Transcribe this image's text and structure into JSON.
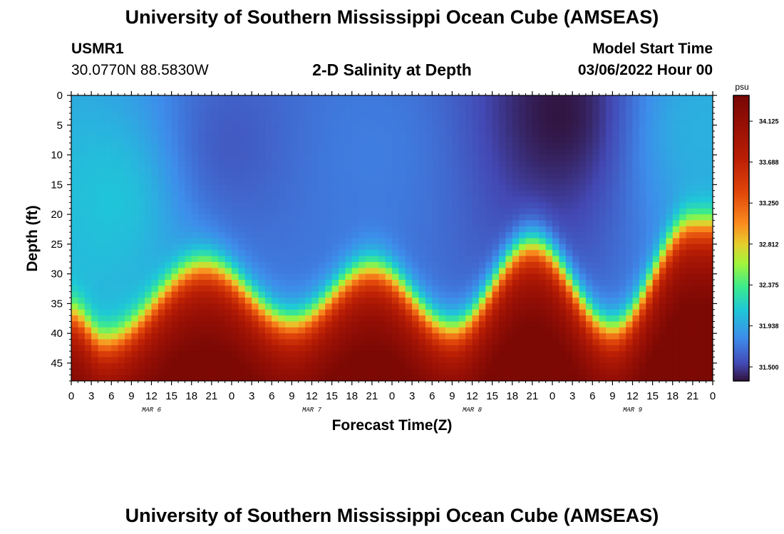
{
  "header": {
    "title": "University of Southern Mississippi Ocean Cube (AMSEAS)",
    "station_id": "USMR1",
    "coordinates": "30.0770N  88.5830W",
    "subtitle": "2-D Salinity at Depth",
    "model_start_label": "Model Start Time",
    "model_start_value": "03/06/2022 Hour 00"
  },
  "footer": {
    "title": "University of Southern Mississippi Ocean Cube (AMSEAS)"
  },
  "chart_data": {
    "type": "heatmap",
    "title": "2-D Salinity at Depth",
    "xlabel": "Forecast Time(Z)",
    "ylabel": "Depth (ft)",
    "x_tick_labels": [
      "0",
      "3",
      "6",
      "9",
      "12",
      "15",
      "18",
      "21",
      "0",
      "3",
      "6",
      "9",
      "12",
      "15",
      "18",
      "21",
      "0",
      "3",
      "6",
      "9",
      "12",
      "15",
      "18",
      "21",
      "0",
      "3",
      "6",
      "9",
      "12",
      "15",
      "18",
      "21",
      "0"
    ],
    "x_range_hours": [
      0,
      96
    ],
    "date_labels": [
      {
        "label": "MAR 6",
        "hour": 12
      },
      {
        "label": "MAR 7",
        "hour": 36
      },
      {
        "label": "MAR 8",
        "hour": 60
      },
      {
        "label": "MAR 9",
        "hour": 84
      }
    ],
    "y_ticks": [
      0,
      5,
      10,
      15,
      20,
      25,
      30,
      35,
      40,
      45
    ],
    "ylim": [
      0,
      48
    ],
    "colorbar": {
      "unit": "psu",
      "tick_labels": [
        "34.125",
        "33.688",
        "33.250",
        "32.812",
        "32.375",
        "31.938",
        "31.500"
      ],
      "tick_values": [
        34.125,
        33.688,
        33.25,
        32.812,
        32.375,
        31.938,
        31.5
      ],
      "min": 31.35,
      "max": 34.4
    },
    "interface_depth_ft": [
      {
        "hour": 0,
        "depth": 37
      },
      {
        "hour": 5,
        "depth": 41.5
      },
      {
        "hour": 20,
        "depth": 29
      },
      {
        "hour": 33,
        "depth": 38.5
      },
      {
        "hour": 45,
        "depth": 29.5
      },
      {
        "hour": 57,
        "depth": 39.5
      },
      {
        "hour": 69,
        "depth": 25.5
      },
      {
        "hour": 81,
        "depth": 39.5
      },
      {
        "hour": 93,
        "depth": 22
      },
      {
        "hour": 96,
        "depth": 22
      }
    ],
    "surface_features": [
      {
        "hour": 6,
        "depth": 18,
        "salinity": 32.1
      },
      {
        "hour": 24,
        "depth": 8,
        "salinity": 31.6
      },
      {
        "hour": 45,
        "depth": 10,
        "salinity": 31.75
      },
      {
        "hour": 73,
        "depth": 3,
        "salinity": 31.35
      },
      {
        "hour": 94,
        "depth": 6,
        "salinity": 32.0
      }
    ]
  }
}
